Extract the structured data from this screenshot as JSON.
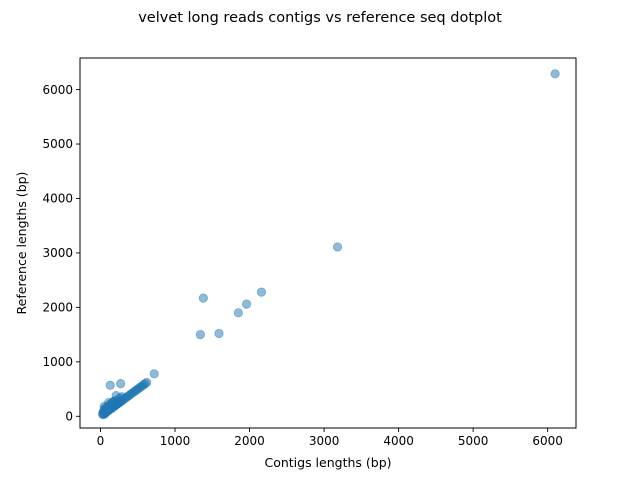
{
  "chart_data": {
    "type": "scatter",
    "title": "velvet long reads contigs vs reference seq dotplot",
    "xlabel": "Contigs lengths (bp)",
    "ylabel": "Reference lengths (bp)",
    "xlim": [
      -275,
      6380
    ],
    "ylim": [
      -215,
      6580
    ],
    "xticks": [
      0,
      1000,
      2000,
      3000,
      4000,
      5000,
      6000
    ],
    "yticks": [
      0,
      1000,
      2000,
      3000,
      4000,
      5000,
      6000
    ],
    "grid": false,
    "legend": "none",
    "marker_color": "#1f77b4",
    "marker_alpha": 0.5,
    "series": [
      {
        "x": [
          30,
          40,
          50,
          60,
          70,
          80,
          90,
          100,
          110,
          120,
          130,
          140,
          150,
          160,
          170,
          180,
          190,
          200,
          210,
          220,
          230,
          240,
          250,
          260,
          270,
          280,
          290,
          300,
          320,
          340,
          360,
          380,
          400,
          420,
          440,
          460,
          480,
          500,
          520,
          540,
          560,
          580,
          600,
          620,
          50,
          60,
          80,
          100,
          110,
          130,
          150,
          170,
          200,
          230,
          260,
          290,
          50,
          60,
          70,
          90,
          120,
          140,
          160,
          180,
          30,
          40,
          45,
          55,
          65,
          75,
          85,
          95,
          130,
          210,
          270,
          720,
          1340,
          1380,
          1590,
          1850,
          1960,
          2160,
          3180,
          6100
        ],
        "y": [
          30,
          40,
          50,
          60,
          70,
          80,
          90,
          100,
          110,
          120,
          130,
          140,
          150,
          160,
          170,
          180,
          190,
          200,
          210,
          220,
          230,
          240,
          250,
          260,
          270,
          280,
          290,
          300,
          320,
          340,
          360,
          380,
          400,
          420,
          440,
          460,
          480,
          500,
          520,
          540,
          560,
          580,
          600,
          620,
          100,
          120,
          140,
          180,
          250,
          200,
          220,
          240,
          280,
          300,
          340,
          360,
          180,
          150,
          130,
          160,
          200,
          230,
          260,
          280,
          60,
          80,
          100,
          40,
          70,
          110,
          90,
          120,
          570,
          380,
          600,
          780,
          1500,
          2170,
          1520,
          1900,
          2060,
          2280,
          3110,
          6290
        ]
      }
    ]
  }
}
